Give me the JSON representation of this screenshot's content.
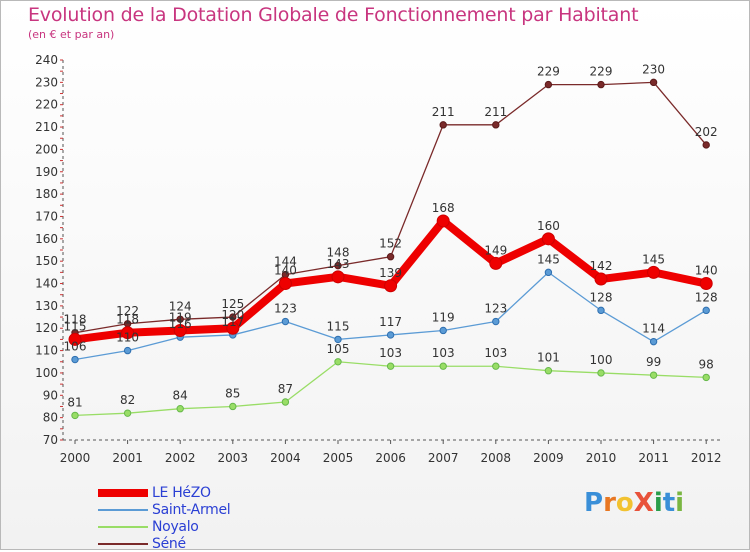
{
  "header": {
    "title": "Evolution de la Dotation Globale de Fonctionnement par Habitant",
    "subtitle": "(en € et par an)"
  },
  "logo": {
    "text": "ProXiti",
    "letters": [
      "P",
      "r",
      "o",
      "X",
      "i",
      "t",
      "i"
    ],
    "colors": [
      "#3a8fd8",
      "#e87722",
      "#f2c230",
      "#e8523a",
      "#2a9d4a",
      "#3a8fd8",
      "#7ab642"
    ]
  },
  "chart_data": {
    "type": "line",
    "title": "Evolution de la Dotation Globale de Fonctionnement par Habitant",
    "ylabel": "(en € et par an)",
    "xlabel": "",
    "x": [
      "2000",
      "2001",
      "2002",
      "2003",
      "2004",
      "2005",
      "2006",
      "2007",
      "2008",
      "2009",
      "2010",
      "2011",
      "2012"
    ],
    "ylim": [
      70,
      240
    ],
    "yticks": [
      "70",
      "80",
      "90",
      "100",
      "110",
      "120",
      "130",
      "140",
      "150",
      "160",
      "170",
      "180",
      "190",
      "200",
      "210",
      "220",
      "230",
      "240"
    ],
    "grid": false,
    "legend_position": "bottom-left",
    "series": [
      {
        "name": "LE HéZO",
        "color": "#ee0000",
        "values": [
          115,
          118,
          119,
          120,
          140,
          143,
          139,
          168,
          149,
          160,
          142,
          145,
          140
        ],
        "labels": [
          "115",
          "118",
          "119",
          "120",
          "140",
          "143",
          "139",
          "168",
          "149",
          "160",
          "142",
          "145",
          "140"
        ]
      },
      {
        "name": "Saint-Armel",
        "color": "#5b9bd5",
        "values": [
          106,
          110,
          116,
          117,
          123,
          115,
          117,
          119,
          123,
          145,
          128,
          114,
          128
        ],
        "labels": [
          "106",
          "110",
          "116",
          "117",
          "123",
          "115",
          "117",
          "119",
          "123",
          "145",
          "128",
          "114",
          "128"
        ]
      },
      {
        "name": "Noyalo",
        "color": "#99dd66",
        "values": [
          81,
          82,
          84,
          85,
          87,
          105,
          103,
          103,
          103,
          101,
          100,
          99,
          98
        ],
        "labels": [
          "81",
          "82",
          "84",
          "85",
          "87",
          "105",
          "103",
          "103",
          "103",
          "101",
          "100",
          "99",
          "98"
        ]
      },
      {
        "name": "Séné",
        "color": "#7a2a2a",
        "values": [
          118,
          122,
          124,
          125,
          144,
          148,
          152,
          211,
          211,
          229,
          229,
          230,
          202
        ],
        "labels": [
          "118",
          "122",
          "124",
          "125",
          "144",
          "148",
          "152",
          "211",
          "211",
          "229",
          "229",
          "230",
          "202"
        ]
      }
    ]
  }
}
